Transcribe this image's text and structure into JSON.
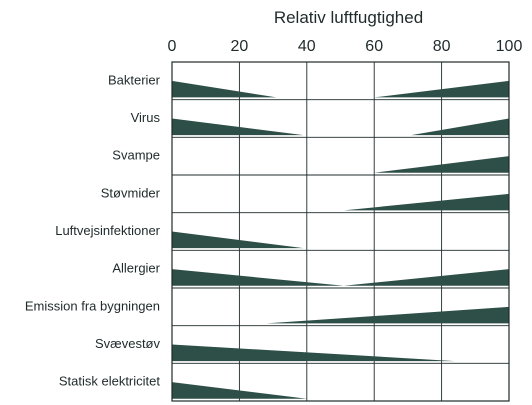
{
  "chart_data": {
    "type": "area",
    "title": "",
    "xlabel": "Relativ luftfugtighed",
    "xlim": [
      0,
      100
    ],
    "xticks": [
      0,
      20,
      40,
      60,
      80,
      100
    ],
    "grid": true,
    "color": "#2e4f47",
    "rows": [
      {
        "label": "Bakterier",
        "low_end": 31,
        "high_start": 60
      },
      {
        "label": "Virus",
        "low_end": 39,
        "high_start": 71
      },
      {
        "label": "Svampe",
        "low_end": null,
        "high_start": 60
      },
      {
        "label": "Støvmider",
        "low_end": null,
        "high_start": 51
      },
      {
        "label": "Luftvejsinfektioner",
        "low_end": 39,
        "high_start": null
      },
      {
        "label": "Allergier",
        "low_end": 51,
        "high_start": 51
      },
      {
        "label": "Emission fra bygningen",
        "low_end": null,
        "high_start": 28
      },
      {
        "label": "Svævestøv",
        "low_end": 84,
        "high_start": null
      },
      {
        "label": "Statisk elektricitet",
        "low_end": 40,
        "high_start": null
      }
    ]
  }
}
